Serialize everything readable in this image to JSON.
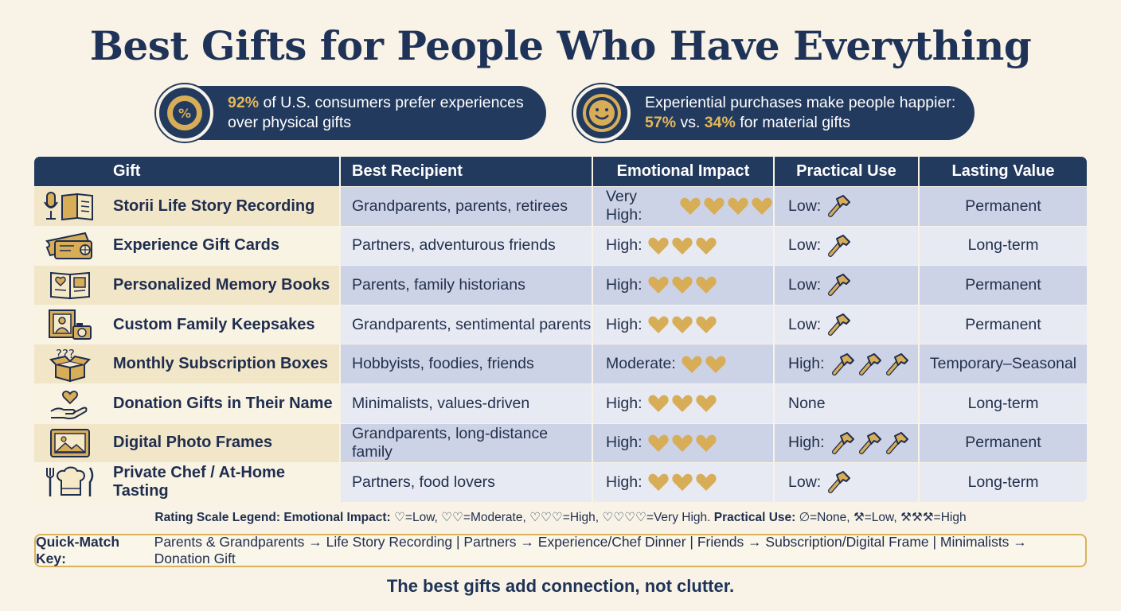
{
  "title": "Best Gifts for People Who Have Everything",
  "stats": [
    {
      "highlight": "92%",
      "text": " of U.S. consumers prefer experiences",
      "text2": "over physical gifts",
      "icon": "percent-badge-icon"
    },
    {
      "text": "Experiential purchases make people happier:",
      "hl1": "57%",
      "mid": " vs. ",
      "hl2": "34%",
      "tail": " for material gifts",
      "icon": "smiley-icon"
    }
  ],
  "table": {
    "headers": [
      "Gift",
      "Best Recipient",
      "Emotional Impact",
      "Practical Use",
      "Lasting Value"
    ],
    "rows": [
      {
        "icon": "microphone-book-icon",
        "gift": "Storii Life Story Recording",
        "recipient": "Grandparents, parents, retirees",
        "impact_label": "Very High:",
        "hearts": 4,
        "use_label": "Low:",
        "hammers": 1,
        "lasting": "Permanent"
      },
      {
        "icon": "ticket-icon",
        "gift": "Experience Gift Cards",
        "recipient": "Partners, adventurous friends",
        "impact_label": "High:",
        "hearts": 3,
        "use_label": "Low:",
        "hammers": 1,
        "lasting": "Long-term"
      },
      {
        "icon": "memory-book-icon",
        "gift": "Personalized Memory Books",
        "recipient": "Parents, family historians",
        "impact_label": "High:",
        "hearts": 3,
        "use_label": "Low:",
        "hammers": 1,
        "lasting": "Permanent"
      },
      {
        "icon": "photo-frame-camera-icon",
        "gift": "Custom Family Keepsakes",
        "recipient": "Grandparents, sentimental parents",
        "impact_label": "High:",
        "hearts": 3,
        "use_label": "Low:",
        "hammers": 1,
        "lasting": "Permanent"
      },
      {
        "icon": "mystery-box-icon",
        "gift": "Monthly Subscription Boxes",
        "recipient": "Hobbyists, foodies, friends",
        "impact_label": "Moderate:",
        "hearts": 2,
        "use_label": "High:",
        "hammers": 3,
        "lasting": "Temporary–Seasonal"
      },
      {
        "icon": "heart-hand-icon",
        "gift": "Donation Gifts in Their Name",
        "recipient": "Minimalists, values-driven",
        "impact_label": "High:",
        "hearts": 3,
        "use_label": "None",
        "hammers": 0,
        "lasting": "Long-term"
      },
      {
        "icon": "digital-frame-icon",
        "gift": "Digital Photo Frames",
        "recipient": "Grandparents, long-distance family",
        "impact_label": "High:",
        "hearts": 3,
        "use_label": "High:",
        "hammers": 3,
        "lasting": "Permanent"
      },
      {
        "icon": "chef-hat-utensils-icon",
        "gift": "Private Chef / At-Home Tasting",
        "recipient": "Partners, food lovers",
        "impact_label": "High:",
        "hearts": 3,
        "use_label": "Low:",
        "hammers": 1,
        "lasting": "Long-term"
      }
    ]
  },
  "legend": {
    "lead": "Rating Scale Legend:",
    "impact_label": "Emotional Impact:",
    "impact_text": "♡=Low, ♡♡=Moderate, ♡♡♡=High, ♡♡♡♡=Very High.",
    "use_label": "Practical Use:",
    "use_text": "∅=None, ⚒=Low, ⚒⚒⚒=High"
  },
  "quick": {
    "label": "Quick-Match Key:",
    "text": "Parents & Grandparents → Life Story Recording | Partners → Experience/Chef Dinner | Friends → Subscription/Digital Frame | Minimalists → Donation Gift"
  },
  "footer": "The best gifts add connection, not clutter.",
  "colors": {
    "navy": "#223a5e",
    "gold": "#d8ad57",
    "cream": "#f8f3e6"
  }
}
